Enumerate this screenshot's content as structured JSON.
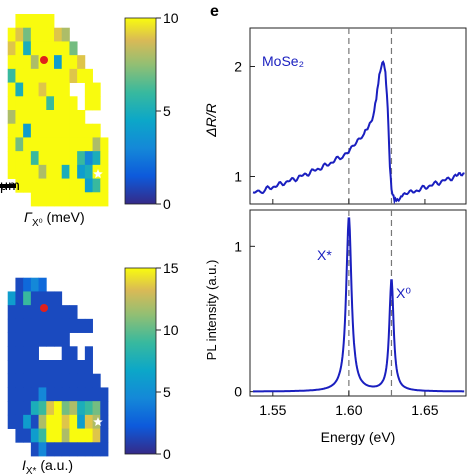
{
  "chart_data": [
    {
      "type": "heatmap",
      "panel": "top-left",
      "colorbar": {
        "ticks": [
          0,
          5,
          10
        ],
        "range": [
          0,
          10
        ]
      },
      "colorbar_label_main": "Γ",
      "colorbar_label_sub": "X⁰",
      "colorbar_label_unit": " (meV)",
      "scale_bar_label": "μm",
      "markers": [
        {
          "kind": "dot",
          "color": "#e0201b"
        },
        {
          "kind": "star",
          "color": "#ffffff"
        }
      ],
      "grid": [
        [
          -1,
          -1,
          10,
          10,
          10,
          10,
          10,
          -1,
          -1,
          -1,
          -1,
          -1,
          -1,
          -1
        ],
        [
          -1,
          10,
          9,
          7,
          10,
          10,
          10,
          9,
          8,
          -1,
          -1,
          -1,
          -1,
          -1
        ],
        [
          -1,
          9,
          10,
          5,
          10,
          10,
          10,
          10,
          10,
          7,
          -1,
          -1,
          -1,
          -1
        ],
        [
          -1,
          10,
          10,
          10,
          8,
          10,
          10,
          4,
          10,
          10,
          9,
          -1,
          -1,
          -1
        ],
        [
          -1,
          6,
          10,
          10,
          10,
          10,
          10,
          10,
          10,
          9,
          10,
          10,
          -1,
          -1
        ],
        [
          -1,
          10,
          5,
          10,
          10,
          9,
          10,
          10,
          10,
          -1,
          -1,
          10,
          10,
          -1
        ],
        [
          -1,
          10,
          10,
          10,
          10,
          10,
          6,
          10,
          10,
          10,
          -1,
          10,
          10,
          -1
        ],
        [
          -1,
          8,
          10,
          10,
          10,
          10,
          10,
          10,
          10,
          10,
          10,
          -1,
          -1,
          -1
        ],
        [
          -1,
          10,
          10,
          4,
          10,
          10,
          10,
          10,
          10,
          10,
          10,
          10,
          10,
          -1
        ],
        [
          -1,
          10,
          7,
          10,
          10,
          10,
          10,
          10,
          10,
          10,
          10,
          10,
          8,
          10
        ],
        [
          -1,
          10,
          10,
          10,
          6,
          10,
          10,
          10,
          10,
          10,
          6,
          3,
          5,
          10
        ],
        [
          -1,
          10,
          10,
          10,
          10,
          8,
          10,
          10,
          5,
          10,
          4,
          5,
          10,
          10
        ],
        [
          -1,
          -1,
          10,
          10,
          10,
          10,
          10,
          10,
          10,
          10,
          10,
          4,
          6,
          10
        ],
        [
          -1,
          -1,
          -1,
          -1,
          10,
          10,
          10,
          10,
          10,
          10,
          10,
          10,
          10,
          10
        ]
      ]
    },
    {
      "type": "heatmap",
      "panel": "bottom-left",
      "colorbar": {
        "ticks": [
          0,
          5,
          10,
          15
        ],
        "range": [
          0,
          15
        ]
      },
      "colorbar_label_main": "I",
      "colorbar_label_sub": "X*",
      "colorbar_label_unit": " (a.u.)",
      "markers": [
        {
          "kind": "dot",
          "color": "#e0201b"
        },
        {
          "kind": "star",
          "color": "#ffffff"
        }
      ],
      "grid": [
        [
          -1,
          -1,
          -1,
          -1,
          -1,
          -1,
          -1,
          -1,
          -1,
          -1,
          -1,
          -1,
          -1,
          -1
        ],
        [
          -1,
          -1,
          1,
          2,
          3,
          2,
          -1,
          -1,
          -1,
          -1,
          -1,
          -1,
          -1,
          -1
        ],
        [
          -1,
          4,
          1,
          6,
          1,
          1,
          1,
          1,
          -1,
          -1,
          -1,
          -1,
          -1,
          -1
        ],
        [
          -1,
          1,
          1,
          1,
          1,
          1,
          1,
          1,
          1,
          1,
          -1,
          -1,
          -1,
          -1
        ],
        [
          -1,
          1,
          1,
          1,
          1,
          1,
          1,
          1,
          1,
          1,
          1,
          1,
          -1,
          -1
        ],
        [
          -1,
          1,
          1,
          1,
          1,
          1,
          1,
          1,
          1,
          -1,
          -1,
          -1,
          -1,
          -1
        ],
        [
          -1,
          1,
          1,
          1,
          1,
          -1,
          -1,
          -1,
          1,
          1,
          -1,
          1,
          -1,
          -1
        ],
        [
          -1,
          1,
          1,
          1,
          1,
          1,
          1,
          1,
          1,
          1,
          1,
          1,
          -1,
          -1
        ],
        [
          -1,
          1,
          1,
          1,
          1,
          1,
          1,
          1,
          1,
          1,
          1,
          1,
          1,
          -1
        ],
        [
          -1,
          1,
          1,
          1,
          1,
          3,
          1,
          1,
          1,
          1,
          1,
          1,
          1,
          1
        ],
        [
          -1,
          1,
          1,
          1,
          5,
          6,
          9,
          10,
          7,
          8,
          5,
          6,
          7,
          1
        ],
        [
          -1,
          1,
          1,
          4,
          1,
          8,
          10,
          12,
          9,
          10,
          4,
          9,
          8,
          1
        ],
        [
          -1,
          -1,
          1,
          1,
          4,
          6,
          10,
          10,
          8,
          10,
          10,
          11,
          9,
          1
        ],
        [
          -1,
          -1,
          -1,
          -1,
          1,
          3,
          1,
          1,
          1,
          1,
          1,
          1,
          1,
          1
        ]
      ]
    },
    {
      "type": "line",
      "panel": "e-top",
      "panel_letter": "e",
      "ylabel": "ΔR/R",
      "ylim": [
        0.75,
        2.35
      ],
      "yticks": [
        1,
        2
      ],
      "xlim": [
        1.535,
        1.677
      ],
      "dashed_lines_x": [
        1.6,
        1.628
      ],
      "annotation": "MoSe₂",
      "series": [
        {
          "color": "#1a1fbf",
          "x": [
            1.537,
            1.545,
            1.555,
            1.565,
            1.575,
            1.585,
            1.595,
            1.6,
            1.605,
            1.61,
            1.613,
            1.616,
            1.618,
            1.62,
            1.622,
            1.623,
            1.624,
            1.625,
            1.626,
            1.627,
            1.628,
            1.63,
            1.632,
            1.635,
            1.64,
            1.65,
            1.66,
            1.67,
            1.676
          ],
          "y": [
            0.85,
            0.88,
            0.93,
            0.98,
            1.04,
            1.1,
            1.18,
            1.24,
            1.3,
            1.38,
            1.45,
            1.56,
            1.72,
            1.92,
            2.02,
            2.03,
            1.95,
            1.75,
            1.45,
            1.1,
            0.88,
            0.8,
            0.8,
            0.82,
            0.85,
            0.9,
            0.95,
            1.0,
            1.03
          ]
        }
      ]
    },
    {
      "type": "line",
      "panel": "e-bottom",
      "xlabel": "Energy (eV)",
      "ylabel": "PL intensity (a.u.)",
      "ylim": [
        -0.03,
        1.25
      ],
      "yticks": [
        0,
        1
      ],
      "xlim": [
        1.535,
        1.677
      ],
      "xticks": [
        1.55,
        1.6,
        1.65
      ],
      "xticklabels": [
        "1.55",
        "1.60",
        "1.65"
      ],
      "dashed_lines_x": [
        1.6,
        1.628
      ],
      "peak_labels": [
        "X*",
        "X⁰"
      ],
      "series": [
        {
          "color": "#1a1fbf",
          "peaks": [
            {
              "center": 1.6,
              "width": 0.0021,
              "amplitude": 1.2
            },
            {
              "center": 1.628,
              "width": 0.0017,
              "amplitude": 0.77
            }
          ]
        }
      ]
    }
  ]
}
